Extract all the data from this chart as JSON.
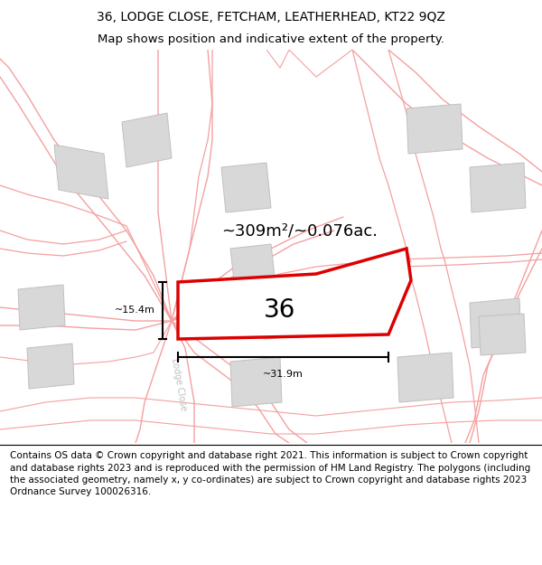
{
  "title_line1": "36, LODGE CLOSE, FETCHAM, LEATHERHEAD, KT22 9QZ",
  "title_line2": "Map shows position and indicative extent of the property.",
  "footer_text": "Contains OS data © Crown copyright and database right 2021. This information is subject to Crown copyright and database rights 2023 and is reproduced with the permission of HM Land Registry. The polygons (including the associated geometry, namely x, y co-ordinates) are subject to Crown copyright and database rights 2023 Ordnance Survey 100026316.",
  "map_bg": "#f7f7f7",
  "road_color": "#f4a0a0",
  "building_color": "#d8d8d8",
  "building_edge": "#c0c0c0",
  "highlight_color": "#dd0000",
  "street_label": "Lodge Close",
  "street_label_color": "#c0c0c0",
  "area_label": "~309m²/~0.076ac.",
  "plot_label": "36",
  "dim_width": "~31.9m",
  "dim_height": "~15.4m",
  "title_fontsize": 10,
  "footer_fontsize": 7.5,
  "plot_num_fontsize": 20
}
